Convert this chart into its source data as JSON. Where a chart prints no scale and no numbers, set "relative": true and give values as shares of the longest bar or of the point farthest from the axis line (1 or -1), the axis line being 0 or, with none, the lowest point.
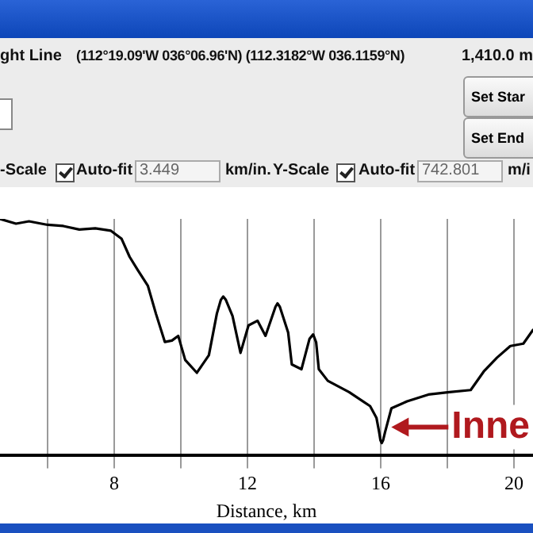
{
  "chart_data": {
    "type": "line",
    "relative": true,
    "xlabel": "Distance, km",
    "color": "#000000",
    "x": [
      4.57,
      5.05,
      5.44,
      6.0,
      6.47,
      6.95,
      7.43,
      7.9,
      8.22,
      8.46,
      8.7,
      9.01,
      9.25,
      9.52,
      9.73,
      9.92,
      10.13,
      10.48,
      10.84,
      11.08,
      11.2,
      11.27,
      11.35,
      11.55,
      11.79,
      12.03,
      12.3,
      12.54,
      12.84,
      12.9,
      12.97,
      13.22,
      13.33,
      13.62,
      13.86,
      13.97,
      14.06,
      14.14,
      14.41,
      15.05,
      15.68,
      15.87,
      15.95,
      15.99,
      16.03,
      16.07,
      16.13,
      16.32,
      16.79,
      17.43,
      18.06,
      18.7,
      19.09,
      19.49,
      19.89,
      20.28,
      20.57
    ],
    "values": [
      1.0,
      0.98,
      0.99,
      0.975,
      0.97,
      0.955,
      0.96,
      0.95,
      0.916,
      0.84,
      0.785,
      0.717,
      0.6,
      0.48,
      0.486,
      0.506,
      0.404,
      0.35,
      0.424,
      0.6,
      0.658,
      0.672,
      0.658,
      0.59,
      0.434,
      0.55,
      0.57,
      0.506,
      0.629,
      0.643,
      0.629,
      0.52,
      0.385,
      0.365,
      0.493,
      0.512,
      0.479,
      0.365,
      0.316,
      0.268,
      0.209,
      0.16,
      0.1,
      0.065,
      0.053,
      0.065,
      0.1,
      0.2,
      0.229,
      0.258,
      0.268,
      0.277,
      0.355,
      0.414,
      0.463,
      0.473,
      0.531
    ],
    "xlim": [
      4.57,
      20.57
    ],
    "xticks": [
      {
        "value": 6,
        "label": null
      },
      8,
      {
        "value": 10,
        "label": null
      },
      12,
      {
        "value": 14,
        "label": null
      },
      16,
      {
        "value": 18,
        "label": null
      },
      20
    ],
    "grid": "x",
    "marker": "none",
    "line_style": "solid",
    "legend": false,
    "annotations": [
      {
        "text": "Inne",
        "x": 16.03,
        "y": 0.053
      },
      "ght Line",
      "(112°19.09'W  036°06.96'N) (112.3182°W  036.1159°N)",
      "1,410.0 m",
      "Set Star",
      "Set End",
      "-Scale",
      "Auto-fit",
      "3.449",
      "km/in.",
      "Y-Scale",
      "Auto-fit",
      "742.801",
      "m/i"
    ]
  }
}
